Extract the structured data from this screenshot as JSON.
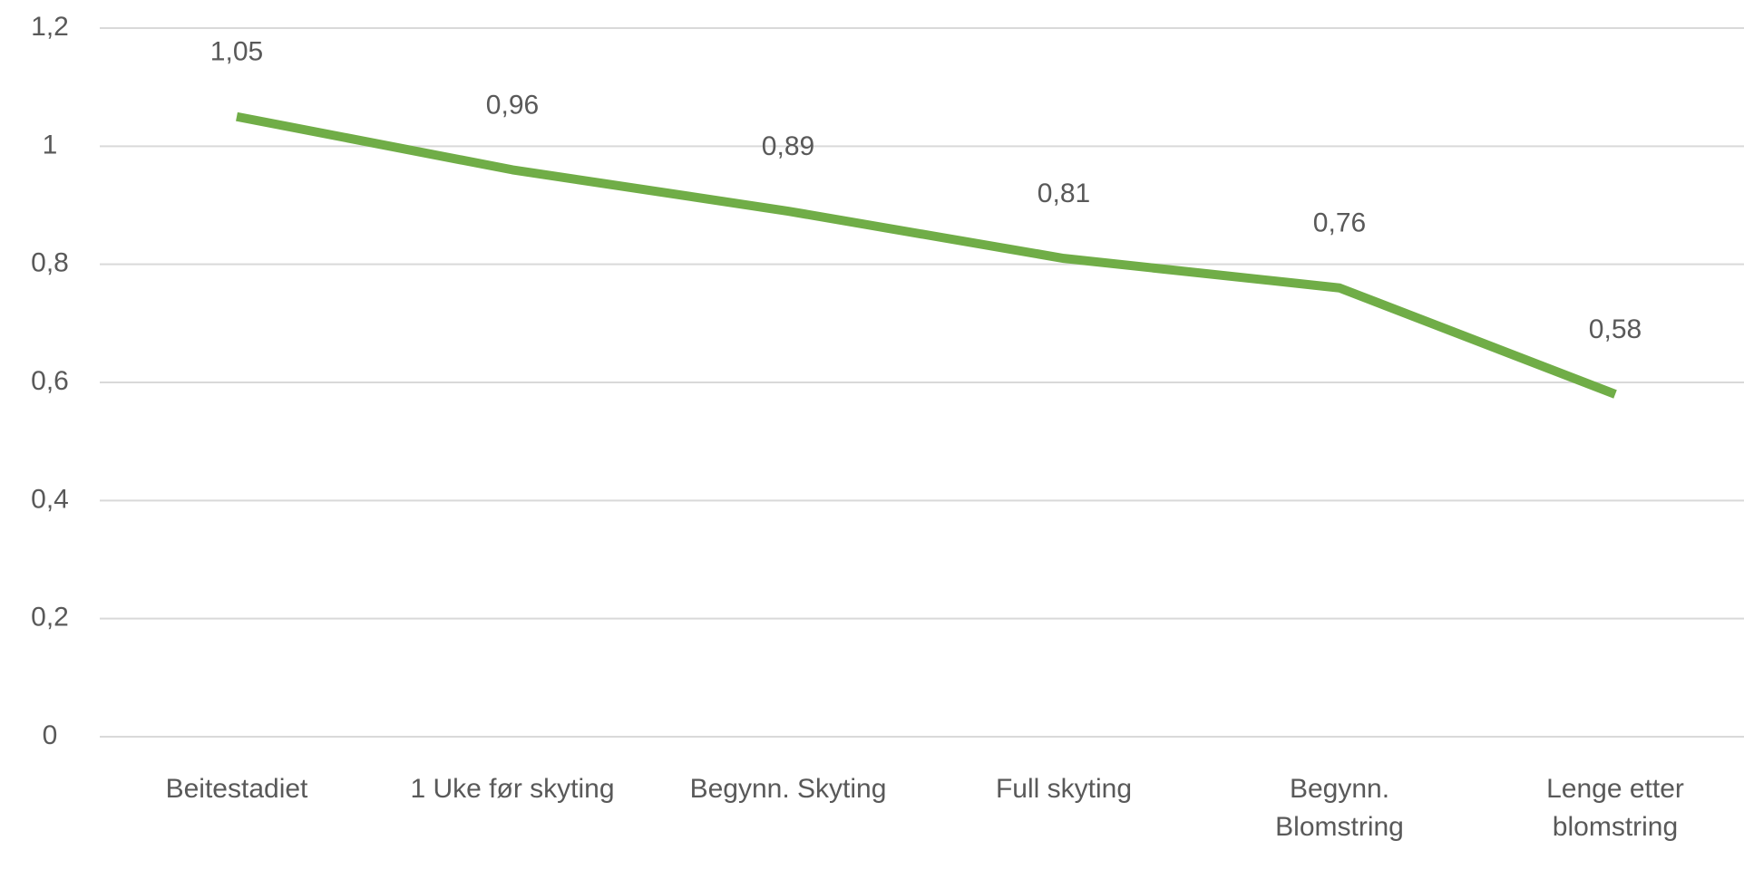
{
  "chart_data": {
    "type": "line",
    "categories": [
      "Beitestadiet",
      "1 Uke før skyting",
      "Begynn. Skyting",
      "Full skyting",
      "Begynn. Blomstring",
      "Lenge etter blomstring"
    ],
    "values": [
      1.05,
      0.96,
      0.89,
      0.81,
      0.76,
      0.58
    ],
    "value_labels": [
      "1,05",
      "0,96",
      "0,89",
      "0,81",
      "0,76",
      "0,58"
    ],
    "color": "#70ad47",
    "ylim": [
      0,
      1.2
    ],
    "yticks": [
      0,
      {
        "value": 0.2,
        "label": "0,2"
      },
      {
        "value": 0.4,
        "label": "0,4"
      },
      {
        "value": 0.6,
        "label": "0,6"
      },
      {
        "value": 0.8,
        "label": "0,8"
      },
      1,
      {
        "value": 1.2,
        "label": "1,2"
      }
    ],
    "grid": true
  }
}
